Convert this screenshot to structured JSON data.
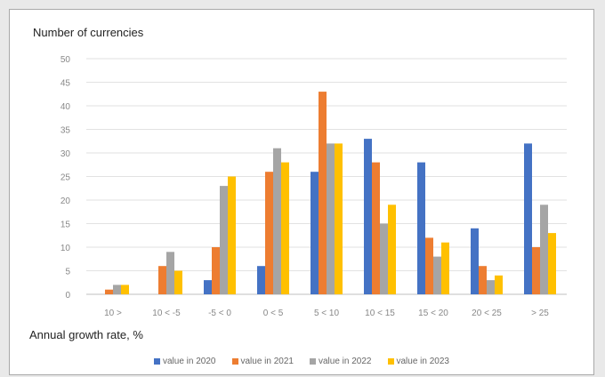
{
  "chart_data": {
    "type": "bar",
    "ylabel": "Number of currencies",
    "xlabel": "Annual growth rate, %",
    "categories": [
      "10 >",
      "10 < -5",
      "-5 < 0",
      "0 < 5",
      "5 < 10",
      "10 < 15",
      "15 < 20",
      "20 < 25",
      "> 25"
    ],
    "ylim": [
      0,
      50
    ],
    "yticks": [
      0,
      5,
      10,
      15,
      20,
      25,
      30,
      35,
      40,
      45,
      50
    ],
    "grid": true,
    "legend_position": "bottom",
    "series": [
      {
        "name": "value in 2020",
        "color": "#4472c4",
        "values": [
          0,
          0,
          3,
          6,
          26,
          33,
          28,
          14,
          32
        ]
      },
      {
        "name": "value in 2021",
        "color": "#ed7d31",
        "values": [
          1,
          6,
          10,
          26,
          43,
          28,
          12,
          6,
          10
        ]
      },
      {
        "name": "value in 2022",
        "color": "#a5a5a5",
        "values": [
          2,
          9,
          23,
          31,
          32,
          15,
          8,
          3,
          19
        ]
      },
      {
        "name": "value in 2023",
        "color": "#ffc000",
        "values": [
          2,
          5,
          25,
          28,
          32,
          19,
          11,
          4,
          13
        ]
      }
    ]
  }
}
